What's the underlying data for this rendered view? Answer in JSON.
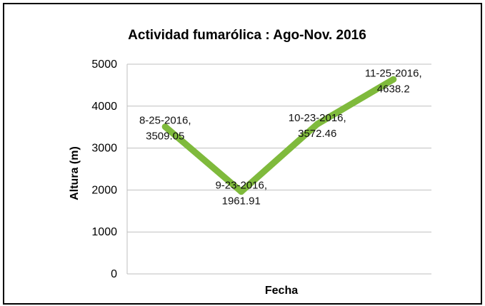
{
  "chart_data": {
    "type": "line",
    "title": "Actividad fumarólica : Ago-Nov. 2016",
    "xlabel": "Fecha",
    "ylabel": "Altura (m)",
    "ylim": [
      0,
      5000
    ],
    "yticks": [
      "0",
      "1000",
      "2000",
      "3000",
      "4000",
      "5000"
    ],
    "grid": true,
    "legend": "none",
    "colors": {
      "line": "#7fba3c",
      "grid": "#bfbfbf",
      "border": "#000000"
    },
    "categories": [
      "8-25-2016",
      "9-23-2016",
      "10-23-2016",
      "11-25-2016"
    ],
    "series": [
      {
        "values": [
          3509.05,
          1961.91,
          3572.46,
          4638.2
        ],
        "labels": [
          [
            "8-25-2016,",
            "3509.05"
          ],
          [
            "9-23-2016,",
            "1961.91"
          ],
          [
            "10-23-2016,",
            "3572.46"
          ],
          [
            "11-25-2016,",
            "4638.2"
          ]
        ]
      }
    ]
  }
}
